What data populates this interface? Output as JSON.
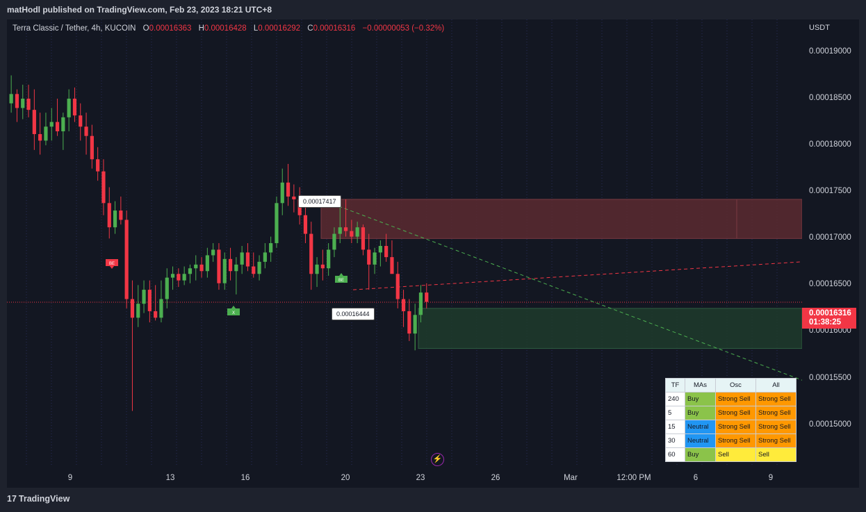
{
  "header": {
    "published": "matHodl published on TradingView.com, Feb 23, 2023 18:21 UTC+8"
  },
  "legend": {
    "symbol": "Terra Classic / Tether, 4h, KUCOIN",
    "o_key": "O",
    "o_val": "0.00016363",
    "h_key": "H",
    "h_val": "0.00016428",
    "l_key": "L",
    "l_val": "0.00016292",
    "c_key": "C",
    "c_val": "0.00016316",
    "change": "−0.00000053 (−0.32%)"
  },
  "price_axis": {
    "unit": "USDT",
    "last_price": "0.00016316",
    "countdown": "01:38:25"
  },
  "labels": {
    "high_marker": "0.00017417",
    "low_marker": "0.00016444",
    "be_red": "BE",
    "be_green": "BE",
    "x_marker": "X"
  },
  "footer": {
    "brand": "TradingView",
    "logo": "17"
  },
  "colors": {
    "up": "#26a69a",
    "up_bright": "#4caf50",
    "down": "#f23645",
    "background": "#131722",
    "supply_zone": "#5c2a30",
    "demand_zone": "#1e3b2c",
    "table_buy": "#8bc34a",
    "table_neutral": "#2196f3",
    "table_strong_sell": "#ff9800",
    "table_sell": "#ffeb3b"
  },
  "icons": {
    "lightning": "lightning-icon"
  },
  "table": {
    "headers": [
      "TF",
      "MAs",
      "Osc",
      "All"
    ],
    "rows": [
      [
        "240",
        "Buy",
        "Strong Sell",
        "Strong Sell"
      ],
      [
        "5",
        "Buy",
        "Strong Sell",
        "Strong Sell"
      ],
      [
        "15",
        "Neutral",
        "Strong Sell",
        "Strong Sell"
      ],
      [
        "30",
        "Neutral",
        "Strong Sell",
        "Strong Sell"
      ],
      [
        "60",
        "Buy",
        "Sell",
        "Sell"
      ]
    ]
  },
  "chart_data": {
    "type": "candlestick",
    "title": "",
    "xlabel": "",
    "ylabel": "USDT",
    "ylim": [
      0.0001455,
      0.0001935
    ],
    "y_ticks": [
      "0.00019000",
      "0.00018500",
      "0.00018000",
      "0.00017500",
      "0.00017000",
      "0.00016500",
      "0.00016000",
      "0.00015500",
      "0.00015000"
    ],
    "x_ticks": [
      "9",
      "13",
      "16",
      "20",
      "23",
      "26",
      "Mar",
      "12:00 PM",
      "6",
      "9"
    ],
    "timeframe": "4h",
    "last_price": 0.00016316,
    "ohlc_sample": [
      [
        0.0001845,
        0.0001875,
        0.0001835,
        0.0001855
      ],
      [
        0.0001855,
        0.000186,
        0.0001825,
        0.000184
      ],
      [
        0.000184,
        0.0001865,
        0.0001828,
        0.000185
      ],
      [
        0.000185,
        0.0001865,
        0.000183,
        0.0001838
      ],
      [
        0.0001838,
        0.000186,
        0.0001795,
        0.0001812
      ],
      [
        0.0001812,
        0.0001835,
        0.000179,
        0.0001805
      ],
      [
        0.0001805,
        0.0001835,
        0.00018,
        0.000182
      ],
      [
        0.000182,
        0.000184,
        0.0001805,
        0.0001825
      ],
      [
        0.0001825,
        0.000185,
        0.000181,
        0.0001815
      ],
      [
        0.0001815,
        0.0001835,
        0.0001795,
        0.000183
      ],
      [
        0.000183,
        0.000186,
        0.0001815,
        0.000185
      ],
      [
        0.000185,
        0.0001862,
        0.0001825,
        0.0001832
      ],
      [
        0.0001832,
        0.0001845,
        0.0001805,
        0.000182
      ],
      [
        0.000182,
        0.0001835,
        0.000179,
        0.000181
      ],
      [
        0.000181,
        0.0001822,
        0.0001775,
        0.0001785
      ],
      [
        0.0001785,
        0.0001798,
        0.0001762,
        0.0001772
      ],
      [
        0.0001772,
        0.0001785,
        0.0001725,
        0.0001738
      ],
      [
        0.0001738,
        0.0001755,
        0.00017,
        0.0001712
      ],
      [
        0.0001712,
        0.000174,
        0.0001705,
        0.000173
      ],
      [
        0.000173,
        0.0001745,
        0.0001715,
        0.000172
      ],
      [
        0.000172,
        0.000173,
        0.0001625,
        0.0001635
      ],
      [
        0.0001635,
        0.0001655,
        0.0001515,
        0.0001615
      ],
      [
        0.0001615,
        0.000165,
        0.0001605,
        0.000163
      ],
      [
        0.000163,
        0.0001655,
        0.000162,
        0.0001645
      ],
      [
        0.0001645,
        0.0001655,
        0.000161,
        0.0001622
      ],
      [
        0.0001622,
        0.000165,
        0.0001612,
        0.0001615
      ],
      [
        0.0001615,
        0.0001655,
        0.000161,
        0.0001635
      ],
      [
        0.0001635,
        0.0001668,
        0.0001625,
        0.0001658
      ],
      [
        0.0001658,
        0.000167,
        0.0001645,
        0.0001662
      ],
      [
        0.0001662,
        0.0001668,
        0.0001648,
        0.0001655
      ],
      [
        0.0001655,
        0.000167,
        0.000165,
        0.0001662
      ],
      [
        0.0001662,
        0.0001672,
        0.0001652,
        0.0001668
      ],
      [
        0.0001668,
        0.0001682,
        0.0001655,
        0.0001672
      ],
      [
        0.0001672,
        0.000168,
        0.0001658,
        0.0001665
      ],
      [
        0.0001665,
        0.000169,
        0.0001658,
        0.0001682
      ],
      [
        0.0001682,
        0.0001695,
        0.0001675,
        0.0001688
      ],
      [
        0.0001688,
        0.0001695,
        0.0001645,
        0.0001652
      ],
      [
        0.0001652,
        0.0001685,
        0.0001645,
        0.0001678
      ],
      [
        0.0001678,
        0.000169,
        0.0001655,
        0.0001665
      ],
      [
        0.0001665,
        0.000168,
        0.000164,
        0.0001672
      ],
      [
        0.0001672,
        0.0001692,
        0.0001662,
        0.0001685
      ],
      [
        0.0001685,
        0.0001695,
        0.0001665,
        0.000167
      ],
      [
        0.000167,
        0.0001685,
        0.0001658,
        0.0001662
      ],
      [
        0.0001662,
        0.0001682,
        0.0001655,
        0.0001675
      ],
      [
        0.0001675,
        0.0001695,
        0.0001668,
        0.0001685
      ],
      [
        0.0001685,
        0.0001702,
        0.0001675,
        0.0001695
      ],
      [
        0.0001695,
        0.0001745,
        0.000169,
        0.0001738
      ],
      [
        0.0001738,
        0.0001775,
        0.0001725,
        0.000176
      ],
      [
        0.000176,
        0.000178,
        0.0001735,
        0.0001745
      ],
      [
        0.0001745,
        0.0001758,
        0.0001728,
        0.0001742
      ],
      [
        0.0001742,
        0.0001755,
        0.0001715,
        0.0001725
      ],
      [
        0.0001725,
        0.0001735,
        0.0001695,
        0.0001705
      ],
      [
        0.0001705,
        0.0001718,
        0.0001645,
        0.0001662
      ],
      [
        0.0001662,
        0.000168,
        0.0001648,
        0.0001672
      ],
      [
        0.0001672,
        0.0001688,
        0.0001655,
        0.0001668
      ],
      [
        0.0001668,
        0.0001695,
        0.000166,
        0.0001688
      ],
      [
        0.0001688,
        0.0001712,
        0.000168,
        0.0001705
      ],
      [
        0.0001705,
        0.0001735,
        0.0001695,
        0.0001712
      ],
      [
        0.0001712,
        0.0001742,
        0.0001702,
        0.0001708
      ],
      [
        0.0001708,
        0.000172,
        0.0001695,
        0.0001702
      ],
      [
        0.0001702,
        0.0001718,
        0.0001695,
        0.0001712
      ],
      [
        0.0001712,
        0.0001715,
        0.0001682,
        0.0001688
      ],
      [
        0.0001688,
        0.0001705,
        0.0001645,
        0.0001672
      ],
      [
        0.0001672,
        0.000169,
        0.0001662,
        0.0001685
      ],
      [
        0.0001685,
        0.0001698,
        0.000167,
        0.0001692
      ],
      [
        0.0001692,
        0.0001705,
        0.0001675,
        0.000168
      ],
      [
        0.000168,
        0.0001698,
        0.0001665,
        0.0001662
      ],
      [
        0.0001662,
        0.0001675,
        0.0001625,
        0.0001635
      ],
      [
        0.0001635,
        0.0001645,
        0.0001605,
        0.0001622
      ],
      [
        0.0001622,
        0.0001635,
        0.000159,
        0.0001598
      ],
      [
        0.0001598,
        0.000163,
        0.000158,
        0.0001618
      ],
      [
        0.0001618,
        0.000165,
        0.000161,
        0.0001642
      ],
      [
        0.0001642,
        0.0001652,
        0.0001625,
        0.0001632
      ]
    ],
    "annotations": {
      "supply_zone": [
        0.00017,
        0.0001742
      ],
      "demand_zone": [
        0.0001582,
        0.0001625
      ],
      "trend_down_from": 0.00017417,
      "trend_up_from": 0.00016444
    }
  }
}
